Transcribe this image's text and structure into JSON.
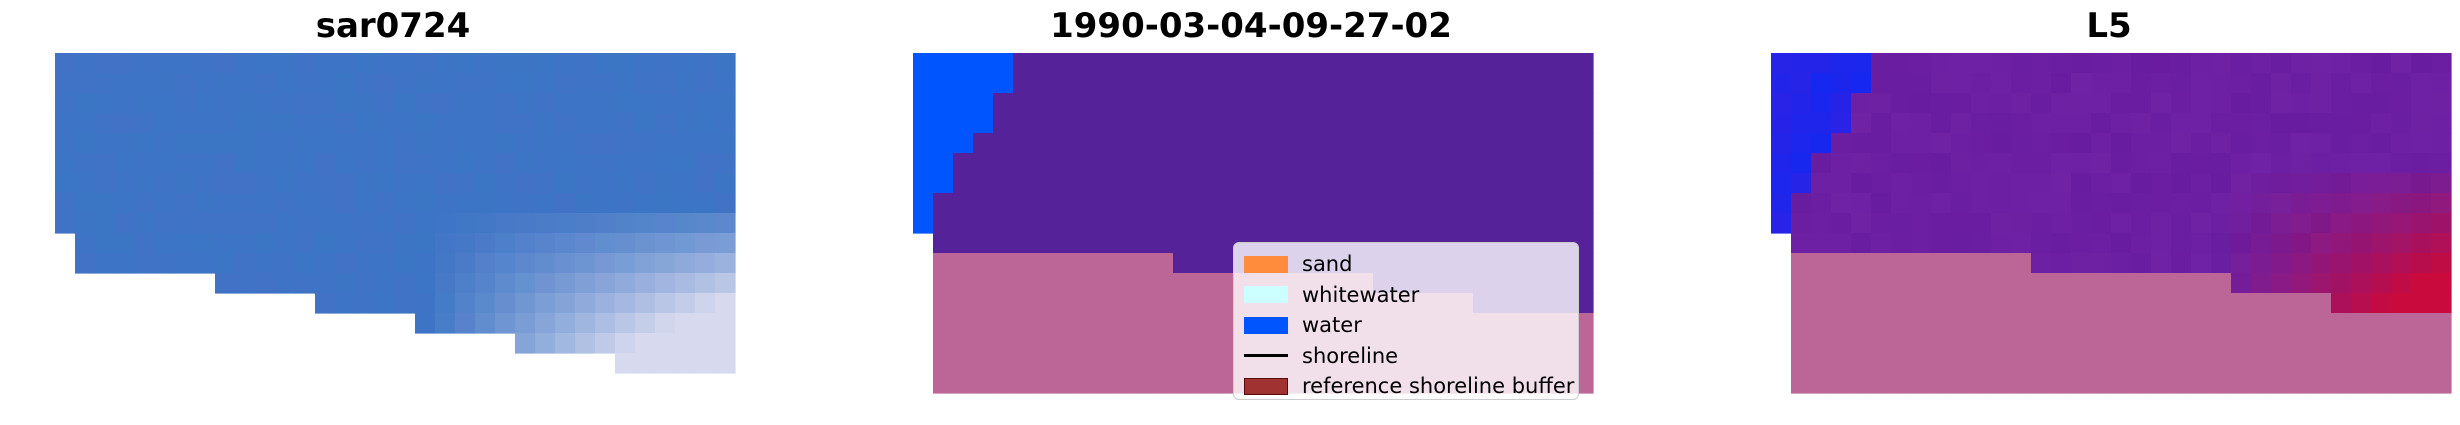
{
  "panels": [
    {
      "title": "sar0724"
    },
    {
      "title": "1990-03-04-09-27-02"
    },
    {
      "title": "L5"
    }
  ],
  "legend": {
    "items": [
      {
        "label": "sand",
        "kind": "patch",
        "color": "#ff8c3c",
        "edge": "#ff8c3c"
      },
      {
        "label": "whitewater",
        "kind": "patch",
        "color": "#ccffff",
        "edge": "#ccffff"
      },
      {
        "label": "water",
        "kind": "patch",
        "color": "#0055ff",
        "edge": "#0055ff"
      },
      {
        "label": "shoreline",
        "kind": "line",
        "color": "#000000"
      },
      {
        "label": "reference shoreline buffer",
        "kind": "patch",
        "color": "#a03232",
        "edge": "#5a0a0a"
      }
    ]
  },
  "colors": {
    "water_blue": "#0055ff",
    "land_purple": "#55229a",
    "sand_pink": "#bb6696",
    "background": "#ffffff"
  }
}
